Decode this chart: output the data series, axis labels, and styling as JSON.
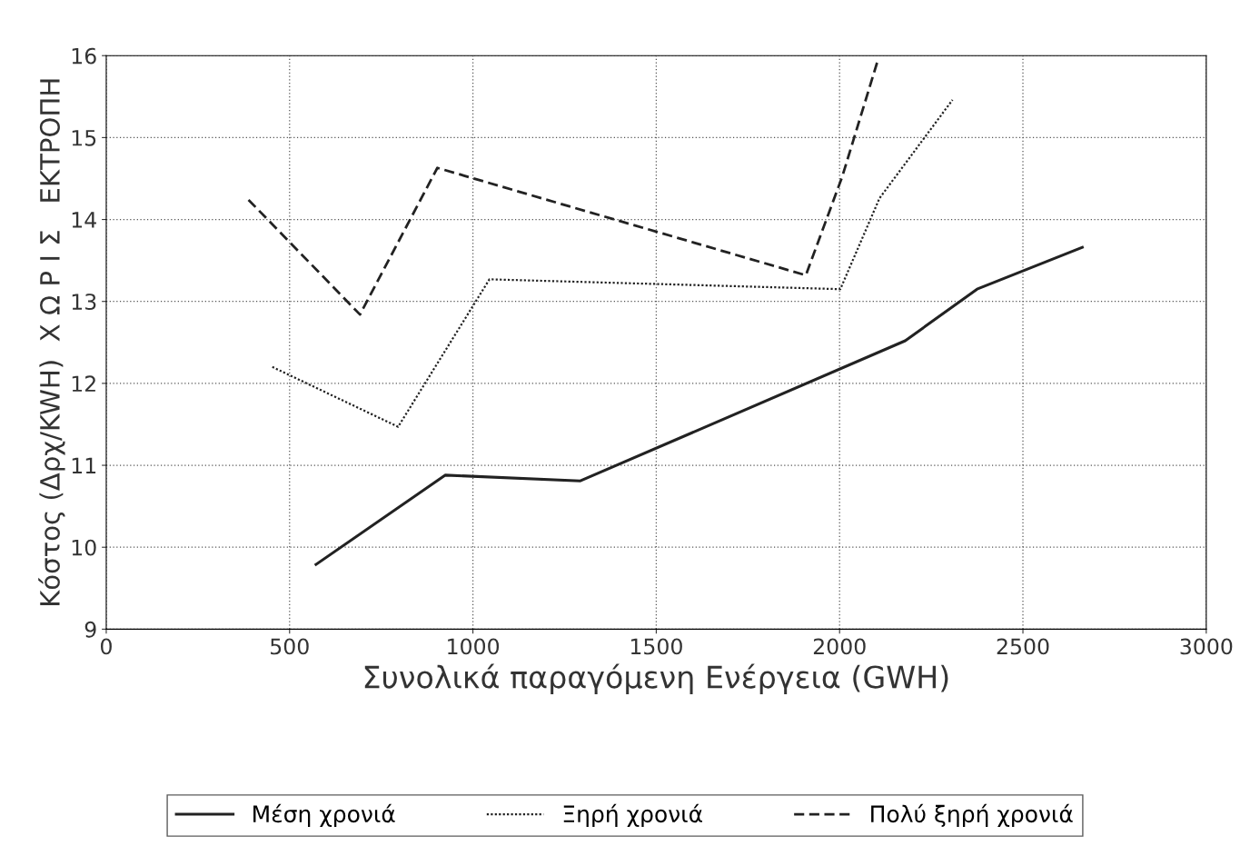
{
  "chart_data": {
    "type": "line",
    "xlabel": "Συνολικά παραγόμενη Ενέργεια (GWH)",
    "ylabel": "Κόστος (Δρχ/KWH)  Χ Ω Ρ Ι Σ   ΕΚΤΡΟΠΗ",
    "xlim": [
      0,
      3000
    ],
    "xticks": [
      0,
      500,
      1000,
      1500,
      2000,
      2500,
      3000
    ],
    "ylim": [
      9,
      16
    ],
    "yticks": [
      9,
      10,
      11,
      12,
      13,
      14,
      15,
      16
    ],
    "grid": true,
    "legend": "bottom",
    "series": [
      {
        "name": "Μέση χρονιά",
        "color": "#222222",
        "line_style": "solid",
        "x": [
          572,
          925,
          1293,
          2179,
          2375,
          2662
        ],
        "values": [
          9.79,
          10.88,
          10.81,
          12.52,
          13.15,
          13.66
        ]
      },
      {
        "name": "Ξηρή χρονιά",
        "color": "#222222",
        "line_style": "dotted",
        "x": [
          453,
          796,
          1045,
          2002,
          2109,
          2308
        ],
        "values": [
          12.2,
          11.47,
          13.27,
          13.15,
          14.26,
          15.46
        ]
      },
      {
        "name": "Πολύ ξηρή χρονιά",
        "color": "#222222",
        "line_style": "dashed",
        "x": [
          388,
          692,
          903,
          1908,
          2007,
          2104
        ],
        "values": [
          14.24,
          12.84,
          14.63,
          13.32,
          14.52,
          15.94
        ]
      }
    ]
  }
}
